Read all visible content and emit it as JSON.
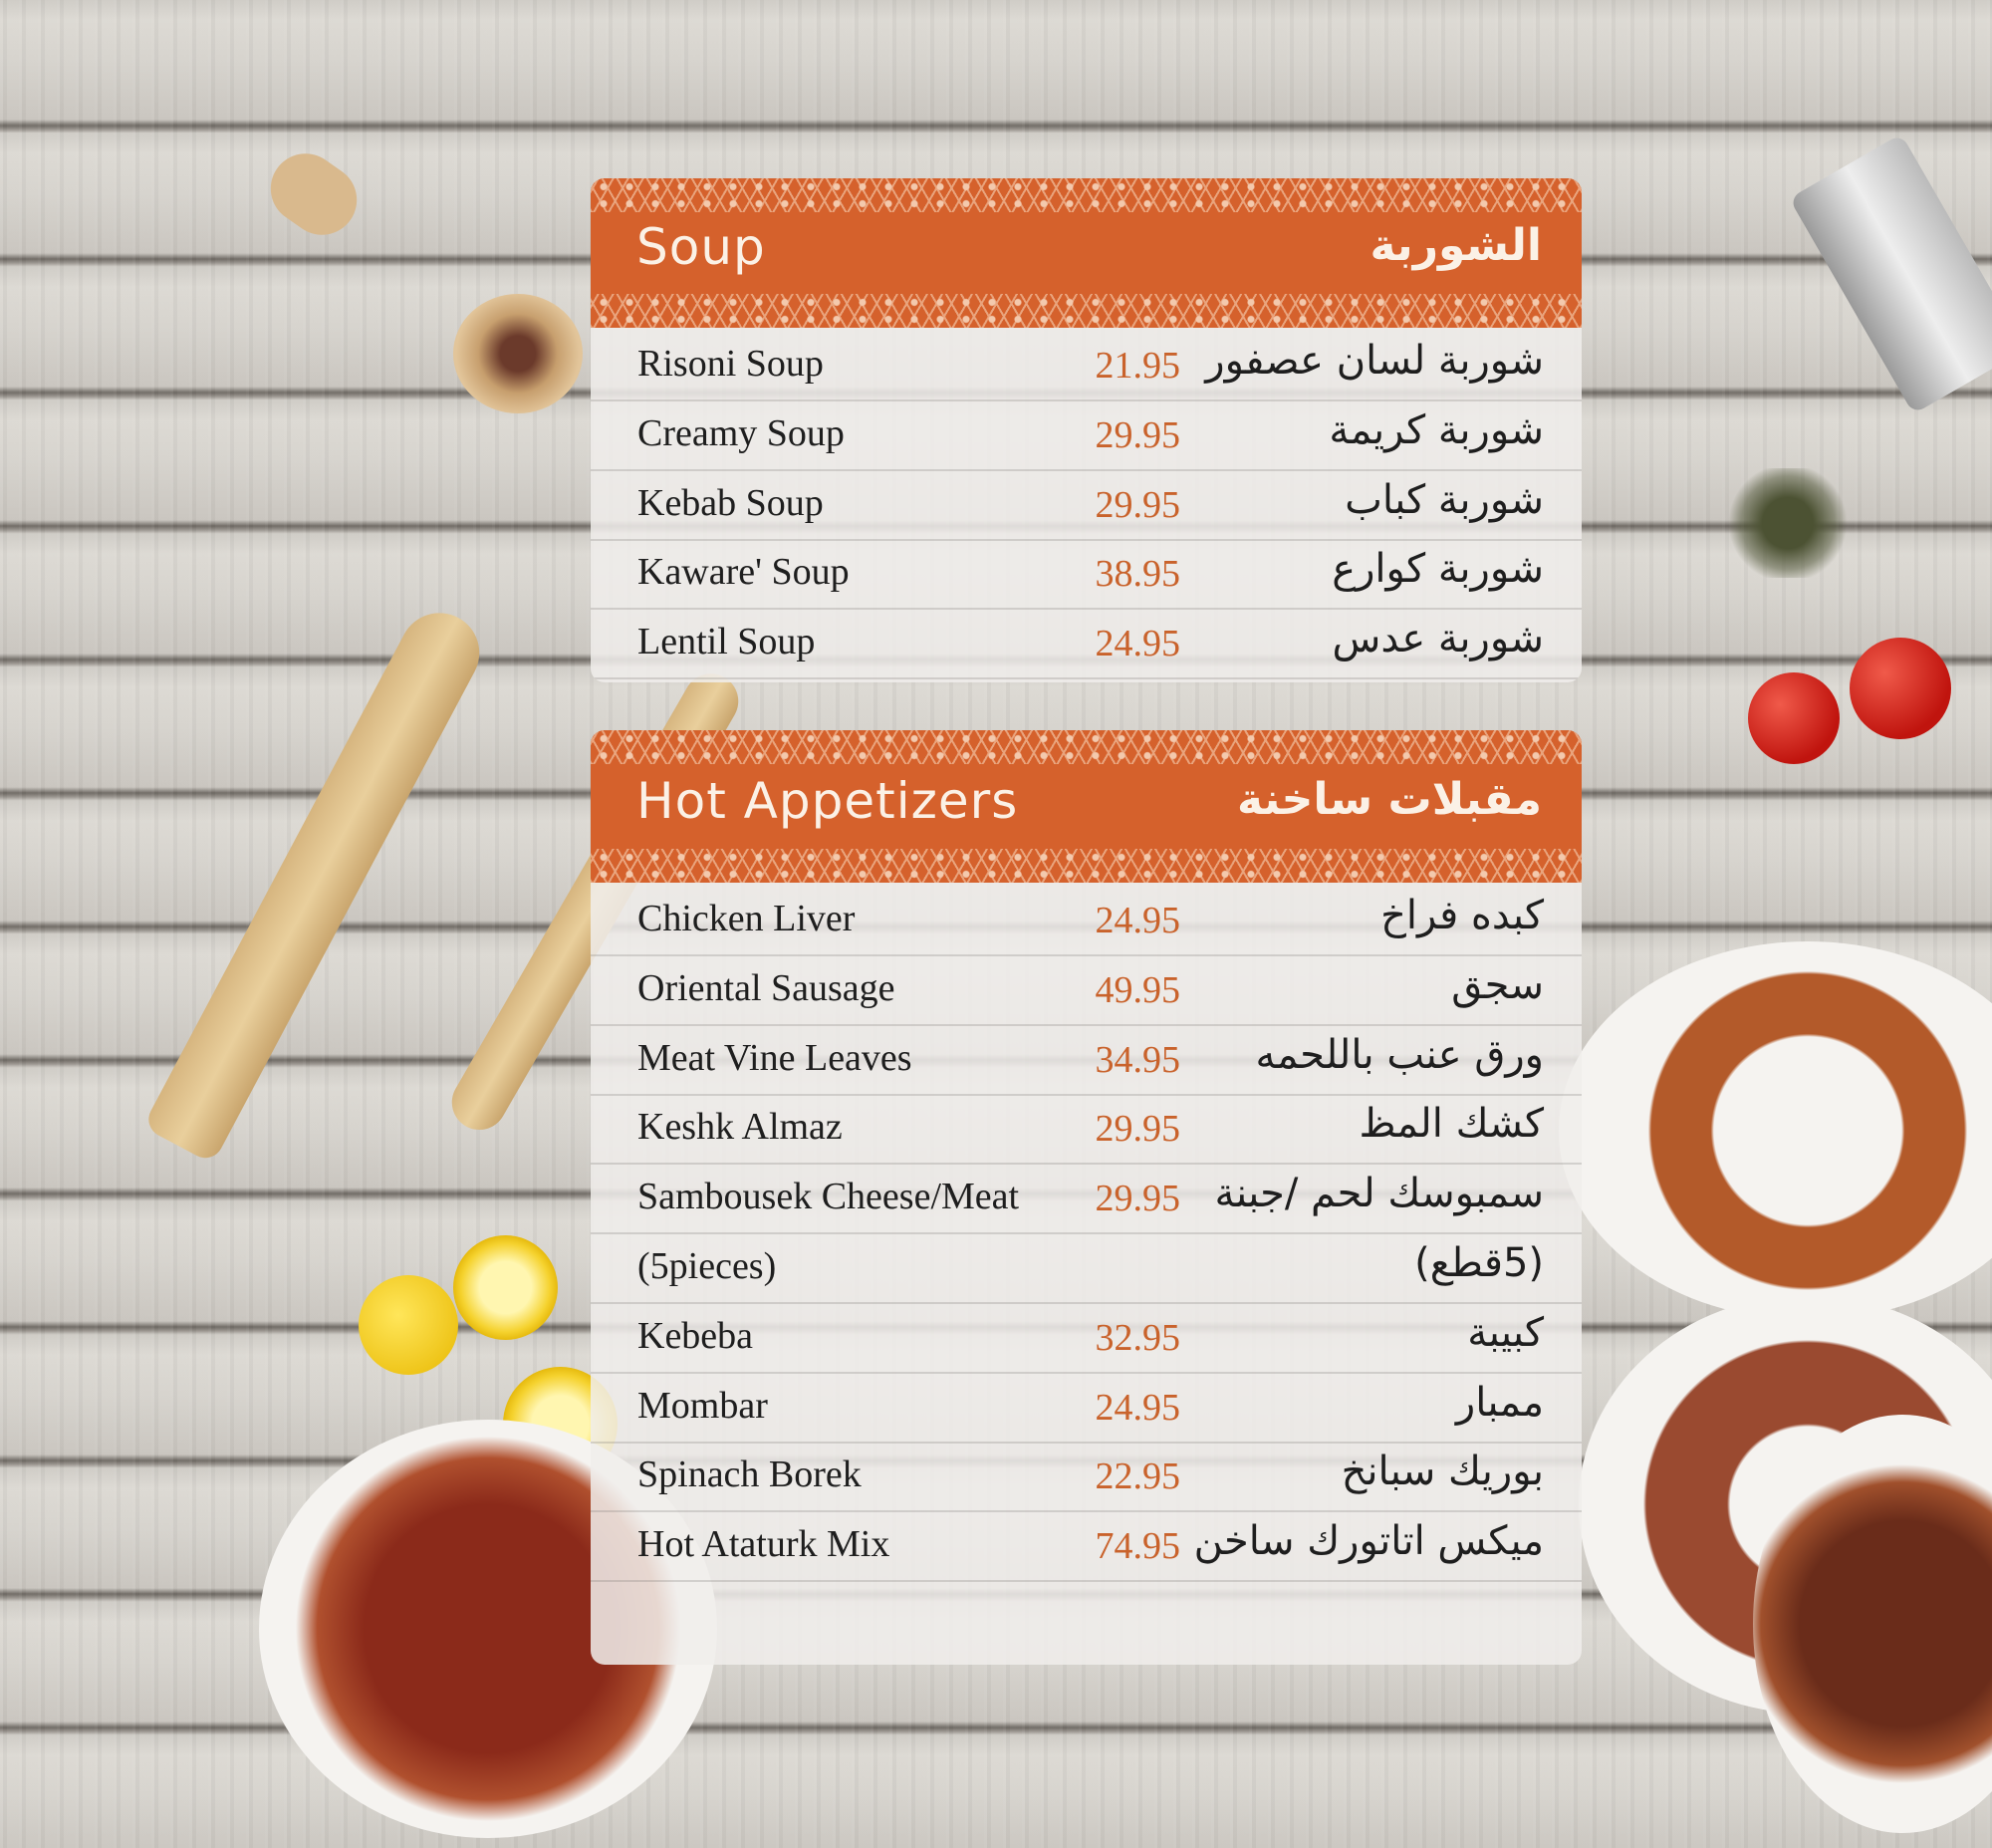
{
  "colors": {
    "accent": "#d5612c",
    "price": "#c9622b",
    "text": "#1e1e1e"
  },
  "sections": [
    {
      "title_en": "Soup",
      "title_ar": "الشوربة",
      "items": [
        {
          "en": "Risoni Soup",
          "price": "21.95",
          "ar": "شوربة لسان عصفور"
        },
        {
          "en": "Creamy Soup",
          "price": "29.95",
          "ar": "شوربة كريمة"
        },
        {
          "en": "Kebab Soup",
          "price": "29.95",
          "ar": "شوربة كباب"
        },
        {
          "en": "Kaware' Soup",
          "price": "38.95",
          "ar": "شوربة كوارع"
        },
        {
          "en": "Lentil Soup",
          "price": "24.95",
          "ar": "شوربة عدس"
        }
      ]
    },
    {
      "title_en": "Hot Appetizers",
      "title_ar": "مقبلات ساخنة",
      "items": [
        {
          "en": "Chicken Liver",
          "price": "24.95",
          "ar": "كبده فراخ"
        },
        {
          "en": "Oriental Sausage",
          "price": "49.95",
          "ar": "سجق"
        },
        {
          "en": "Meat Vine Leaves",
          "price": "34.95",
          "ar": "ورق عنب باللحمه"
        },
        {
          "en": "Keshk Almaz",
          "price": "29.95",
          "ar": "كشك المظ"
        },
        {
          "en": "Sambousek Cheese/Meat",
          "price": "29.95",
          "ar": "سمبوسك لحم /جبنة"
        },
        {
          "en": "(5pieces)",
          "price": "",
          "ar": "(5قطع)"
        },
        {
          "en": "Kebeba",
          "price": "32.95",
          "ar": "كبيبة"
        },
        {
          "en": "Mombar",
          "price": "24.95",
          "ar": "ممبار"
        },
        {
          "en": "Spinach Borek",
          "price": "22.95",
          "ar": "بوريك سبانخ"
        },
        {
          "en": "Hot Ataturk Mix",
          "price": "74.95",
          "ar": "ميكس اتاتورك ساخن"
        }
      ]
    }
  ]
}
